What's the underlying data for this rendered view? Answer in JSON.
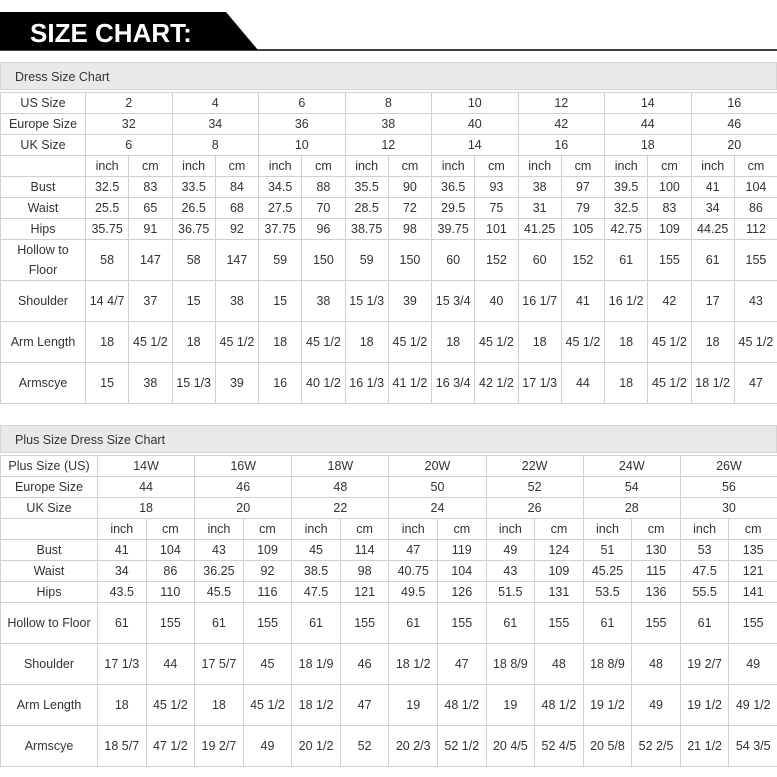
{
  "header": {
    "title": "SIZE CHART:"
  },
  "tables": [
    {
      "title": "Dress Size Chart",
      "rows": [
        {
          "label": "US Size",
          "cells": [
            "2",
            "4",
            "6",
            "8",
            "10",
            "12",
            "14",
            "16"
          ]
        },
        {
          "label": "Europe Size",
          "cells": [
            "32",
            "34",
            "36",
            "38",
            "40",
            "42",
            "44",
            "46"
          ]
        },
        {
          "label": "UK Size",
          "cells": [
            "6",
            "8",
            "10",
            "12",
            "14",
            "16",
            "18",
            "20"
          ]
        },
        {
          "label": null,
          "cells": [
            "inch",
            "cm",
            "inch",
            "cm",
            "inch",
            "cm",
            "inch",
            "cm",
            "inch",
            "cm",
            "inch",
            "cm",
            "inch",
            "cm",
            "inch",
            "cm"
          ]
        },
        {
          "label": "Bust",
          "cells": [
            "32.5",
            "83",
            "33.5",
            "84",
            "34.5",
            "88",
            "35.5",
            "90",
            "36.5",
            "93",
            "38",
            "97",
            "39.5",
            "100",
            "41",
            "104"
          ]
        },
        {
          "label": "Waist",
          "cells": [
            "25.5",
            "65",
            "26.5",
            "68",
            "27.5",
            "70",
            "28.5",
            "72",
            "29.5",
            "75",
            "31",
            "79",
            "32.5",
            "83",
            "34",
            "86"
          ]
        },
        {
          "label": "Hips",
          "cells": [
            "35.75",
            "91",
            "36.75",
            "92",
            "37.75",
            "96",
            "38.75",
            "98",
            "39.75",
            "101",
            "41.25",
            "105",
            "42.75",
            "109",
            "44.25",
            "112"
          ]
        },
        {
          "label": "Hollow to Floor",
          "cells": [
            "58",
            "147",
            "58",
            "147",
            "59",
            "150",
            "59",
            "150",
            "60",
            "152",
            "60",
            "152",
            "61",
            "155",
            "61",
            "155"
          ]
        },
        {
          "label": "Shoulder",
          "cells": [
            "14 4/7",
            "37",
            "15",
            "38",
            "15",
            "38",
            "15 1/3",
            "39",
            "15 3/4",
            "40",
            "16 1/7",
            "41",
            "16 1/2",
            "42",
            "17",
            "43"
          ]
        },
        {
          "label": "Arm Length",
          "cells": [
            "18",
            "45 1/2",
            "18",
            "45 1/2",
            "18",
            "45 1/2",
            "18",
            "45 1/2",
            "18",
            "45 1/2",
            "18",
            "45 1/2",
            "18",
            "45 1/2",
            "18",
            "45 1/2"
          ]
        },
        {
          "label": "Armscye",
          "cells": [
            "15",
            "38",
            "15 1/3",
            "39",
            "16",
            "40 1/2",
            "16 1/3",
            "41 1/2",
            "16 3/4",
            "42 1/2",
            "17 1/3",
            "44",
            "18",
            "45 1/2",
            "18 1/2",
            "47"
          ]
        }
      ]
    },
    {
      "title": "Plus Size Dress Size Chart",
      "rows": [
        {
          "label": "Plus Size (US)",
          "cells": [
            "14W",
            "16W",
            "18W",
            "20W",
            "22W",
            "24W",
            "26W"
          ]
        },
        {
          "label": "Europe Size",
          "cells": [
            "44",
            "46",
            "48",
            "50",
            "52",
            "54",
            "56"
          ]
        },
        {
          "label": "UK Size",
          "cells": [
            "18",
            "20",
            "22",
            "24",
            "26",
            "28",
            "30"
          ]
        },
        {
          "label": null,
          "cells": [
            "inch",
            "cm",
            "inch",
            "cm",
            "inch",
            "cm",
            "inch",
            "cm",
            "inch",
            "cm",
            "inch",
            "cm",
            "inch",
            "cm"
          ]
        },
        {
          "label": "Bust",
          "cells": [
            "41",
            "104",
            "43",
            "109",
            "45",
            "114",
            "47",
            "119",
            "49",
            "124",
            "51",
            "130",
            "53",
            "135"
          ]
        },
        {
          "label": "Waist",
          "cells": [
            "34",
            "86",
            "36.25",
            "92",
            "38.5",
            "98",
            "40.75",
            "104",
            "43",
            "109",
            "45.25",
            "115",
            "47.5",
            "121"
          ]
        },
        {
          "label": "Hips",
          "cells": [
            "43.5",
            "110",
            "45.5",
            "116",
            "47.5",
            "121",
            "49.5",
            "126",
            "51.5",
            "131",
            "53.5",
            "136",
            "55.5",
            "141"
          ]
        },
        {
          "label": "Hollow to Floor",
          "cells": [
            "61",
            "155",
            "61",
            "155",
            "61",
            "155",
            "61",
            "155",
            "61",
            "155",
            "61",
            "155",
            "61",
            "155"
          ]
        },
        {
          "label": "Shoulder",
          "cells": [
            "17 1/3",
            "44",
            "17 5/7",
            "45",
            "18 1/9",
            "46",
            "18 1/2",
            "47",
            "18 8/9",
            "48",
            "18 8/9",
            "48",
            "19 2/7",
            "49"
          ]
        },
        {
          "label": "Arm Length",
          "cells": [
            "18",
            "45 1/2",
            "18",
            "45 1/2",
            "18 1/2",
            "47",
            "19",
            "48 1/2",
            "19",
            "48 1/2",
            "19 1/2",
            "49",
            "19 1/2",
            "49 1/2"
          ]
        },
        {
          "label": "Armscye",
          "cells": [
            "18 5/7",
            "47 1/2",
            "19 2/7",
            "49",
            "20 1/2",
            "52",
            "20 2/3",
            "52 1/2",
            "20 4/5",
            "52 4/5",
            "20 5/8",
            "52 2/5",
            "21 1/2",
            "54 3/5"
          ]
        }
      ]
    }
  ]
}
